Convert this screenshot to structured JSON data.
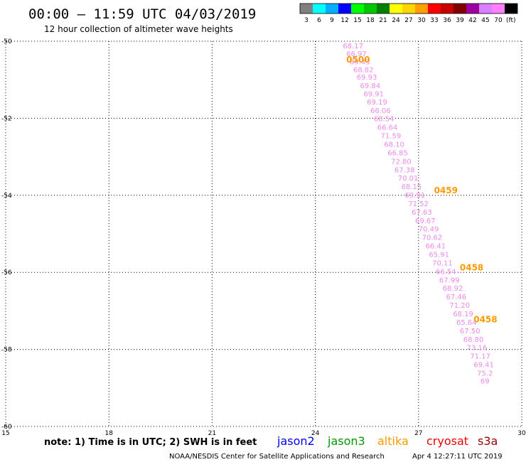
{
  "header": {
    "title": "00:00 – 11:59 UTC 04/03/2019",
    "subtitle": "12 hour collection of altimeter wave heights"
  },
  "scale": {
    "unit": "(ft)",
    "bins": [
      {
        "label": "3",
        "color": "#808080"
      },
      {
        "label": "6",
        "color": "#00ffff"
      },
      {
        "label": "9",
        "color": "#00b0ff"
      },
      {
        "label": "12",
        "color": "#0000ff"
      },
      {
        "label": "15",
        "color": "#00ff00"
      },
      {
        "label": "18",
        "color": "#00c800"
      },
      {
        "label": "21",
        "color": "#008000"
      },
      {
        "label": "24",
        "color": "#ffff00"
      },
      {
        "label": "27",
        "color": "#ffd700"
      },
      {
        "label": "30",
        "color": "#ffa000"
      },
      {
        "label": "33",
        "color": "#ff0000"
      },
      {
        "label": "36",
        "color": "#c80000"
      },
      {
        "label": "39",
        "color": "#800000"
      },
      {
        "label": "42",
        "color": "#a000a0"
      },
      {
        "label": "45",
        "color": "#d880ff"
      },
      {
        "label": "70",
        "color": "#ff80ff"
      },
      {
        "label": "",
        "color": "#000000"
      }
    ]
  },
  "chart_data": {
    "type": "scatter",
    "xlim": [
      15,
      30
    ],
    "ylim": [
      -60,
      -50
    ],
    "x_ticks": [
      "15",
      "18",
      "21",
      "24",
      "27",
      "30"
    ],
    "y_ticks": [
      "-50",
      "-52",
      "-54",
      "-56",
      "-58",
      "-60"
    ],
    "grid": true,
    "point_color": "#ee88ee",
    "time_color": "#ff9900",
    "points": [
      {
        "lon": 24.8,
        "lat": -50.18,
        "label": "68.17"
      },
      {
        "lon": 24.9,
        "lat": -50.39,
        "label": "66.97"
      },
      {
        "lon": 25.0,
        "lat": -50.6,
        "label": "69.43"
      },
      {
        "lon": 25.1,
        "lat": -50.8,
        "label": "68.82"
      },
      {
        "lon": 25.2,
        "lat": -51.0,
        "label": "69.93"
      },
      {
        "lon": 25.3,
        "lat": -51.22,
        "label": "69.84"
      },
      {
        "lon": 25.4,
        "lat": -51.43,
        "label": "69.91"
      },
      {
        "lon": 25.5,
        "lat": -51.64,
        "label": "69.19"
      },
      {
        "lon": 25.6,
        "lat": -51.86,
        "label": "66.06"
      },
      {
        "lon": 25.7,
        "lat": -52.08,
        "label": "68.54"
      },
      {
        "lon": 25.8,
        "lat": -52.3,
        "label": "66.64"
      },
      {
        "lon": 25.9,
        "lat": -52.52,
        "label": "71.59"
      },
      {
        "lon": 26.0,
        "lat": -52.74,
        "label": "68.10"
      },
      {
        "lon": 26.1,
        "lat": -52.96,
        "label": "66.85"
      },
      {
        "lon": 26.2,
        "lat": -53.18,
        "label": "72.80"
      },
      {
        "lon": 26.3,
        "lat": -53.4,
        "label": "67.38"
      },
      {
        "lon": 26.4,
        "lat": -53.62,
        "label": "70.01"
      },
      {
        "lon": 26.5,
        "lat": -53.84,
        "label": "68.15"
      },
      {
        "lon": 26.6,
        "lat": -54.06,
        "label": "69.91"
      },
      {
        "lon": 26.7,
        "lat": -54.28,
        "label": "71.52"
      },
      {
        "lon": 26.8,
        "lat": -54.5,
        "label": "67.63"
      },
      {
        "lon": 26.9,
        "lat": -54.72,
        "label": "69.67"
      },
      {
        "lon": 27.0,
        "lat": -54.94,
        "label": "70.49"
      },
      {
        "lon": 27.1,
        "lat": -55.16,
        "label": "70.62"
      },
      {
        "lon": 27.2,
        "lat": -55.38,
        "label": "66.41"
      },
      {
        "lon": 27.3,
        "lat": -55.6,
        "label": "65.91"
      },
      {
        "lon": 27.4,
        "lat": -55.82,
        "label": "70.11"
      },
      {
        "lon": 27.5,
        "lat": -56.04,
        "label": "66.54"
      },
      {
        "lon": 27.6,
        "lat": -56.26,
        "label": "67.99"
      },
      {
        "lon": 27.7,
        "lat": -56.48,
        "label": "68.92"
      },
      {
        "lon": 27.8,
        "lat": -56.7,
        "label": "67.46"
      },
      {
        "lon": 27.9,
        "lat": -56.92,
        "label": "71.20"
      },
      {
        "lon": 28.0,
        "lat": -57.14,
        "label": "68.19"
      },
      {
        "lon": 28.1,
        "lat": -57.36,
        "label": "65.64"
      },
      {
        "lon": 28.2,
        "lat": -57.58,
        "label": "67.50"
      },
      {
        "lon": 28.3,
        "lat": -57.8,
        "label": "68.80"
      },
      {
        "lon": 28.4,
        "lat": -58.02,
        "label": "73.16"
      },
      {
        "lon": 28.5,
        "lat": -58.24,
        "label": "71.17"
      },
      {
        "lon": 28.6,
        "lat": -58.46,
        "label": "69.41"
      },
      {
        "lon": 28.7,
        "lat": -58.68,
        "label": "75.2"
      },
      {
        "lon": 28.8,
        "lat": -58.88,
        "label": "69"
      }
    ],
    "time_labels": [
      {
        "lon": 24.9,
        "lat": -50.55,
        "label": "0500"
      },
      {
        "lon": 27.45,
        "lat": -53.95,
        "label": "0459"
      },
      {
        "lon": 28.2,
        "lat": -55.95,
        "label": "0458"
      },
      {
        "lon": 28.6,
        "lat": -57.3,
        "label": "0458"
      }
    ]
  },
  "footer": {
    "note": "note: 1) Time is in UTC; 2) SWH is in feet",
    "satellites": [
      {
        "name": "jason2",
        "color": "#0000ee"
      },
      {
        "name": "jason3",
        "color": "#009900"
      },
      {
        "name": "altika",
        "color": "#ff9900"
      },
      {
        "name": "cryosat",
        "color": "#ee0000"
      },
      {
        "name": "s3a",
        "color": "#990000"
      }
    ],
    "credit": "NOAA/NESDIS Center for Satellite Applications and Research",
    "timestamp": "Apr  4 12:27:11 UTC 2019"
  }
}
